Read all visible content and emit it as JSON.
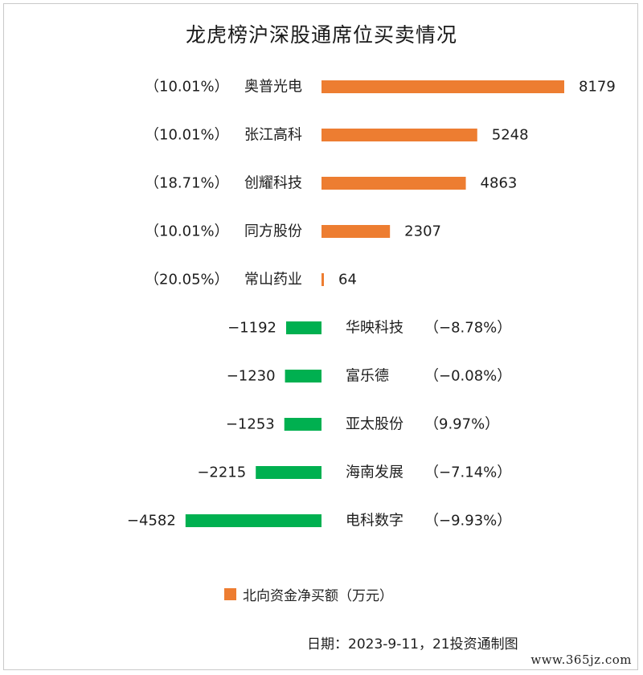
{
  "chart_data": {
    "type": "bar",
    "orientation": "horizontal",
    "title": "龙虎榜沪深股通席位买卖情况",
    "categories": [
      "奥普光电",
      "张江高科",
      "创耀科技",
      "同方股份",
      "常山药业",
      "华映科技",
      "富乐德",
      "亚太股份",
      "海南发展",
      "电科数字"
    ],
    "values": [
      8179,
      5248,
      4863,
      2307,
      64,
      -1192,
      -1230,
      -1253,
      -2215,
      -4582
    ],
    "value_labels": [
      "8179",
      "5248",
      "4863",
      "2307",
      "64",
      "−1192",
      "−1230",
      "−1253",
      "−2215",
      "−4582"
    ],
    "pct_labels": [
      "（10.01%）",
      "（10.01%）",
      "（18.71%）",
      "（10.01%）",
      "（20.05%）",
      "（−8.78%）",
      "（−0.08%）",
      "（9.97%）",
      "（−7.14%）",
      "（−9.93%）"
    ],
    "series": [
      {
        "name": "北向资金净买额（万元）",
        "values": [
          8179,
          5248,
          4863,
          2307,
          64,
          -1192,
          -1230,
          -1253,
          -2215,
          -4582
        ]
      }
    ],
    "colors": {
      "positive": "#ED7D31",
      "negative": "#00B050"
    },
    "legend": "bottom",
    "grid": false
  },
  "legend_label": "北向资金净买额（万元）",
  "source": "日期：2023-9-11，21投资通制图",
  "watermark": "www.365jz.com"
}
